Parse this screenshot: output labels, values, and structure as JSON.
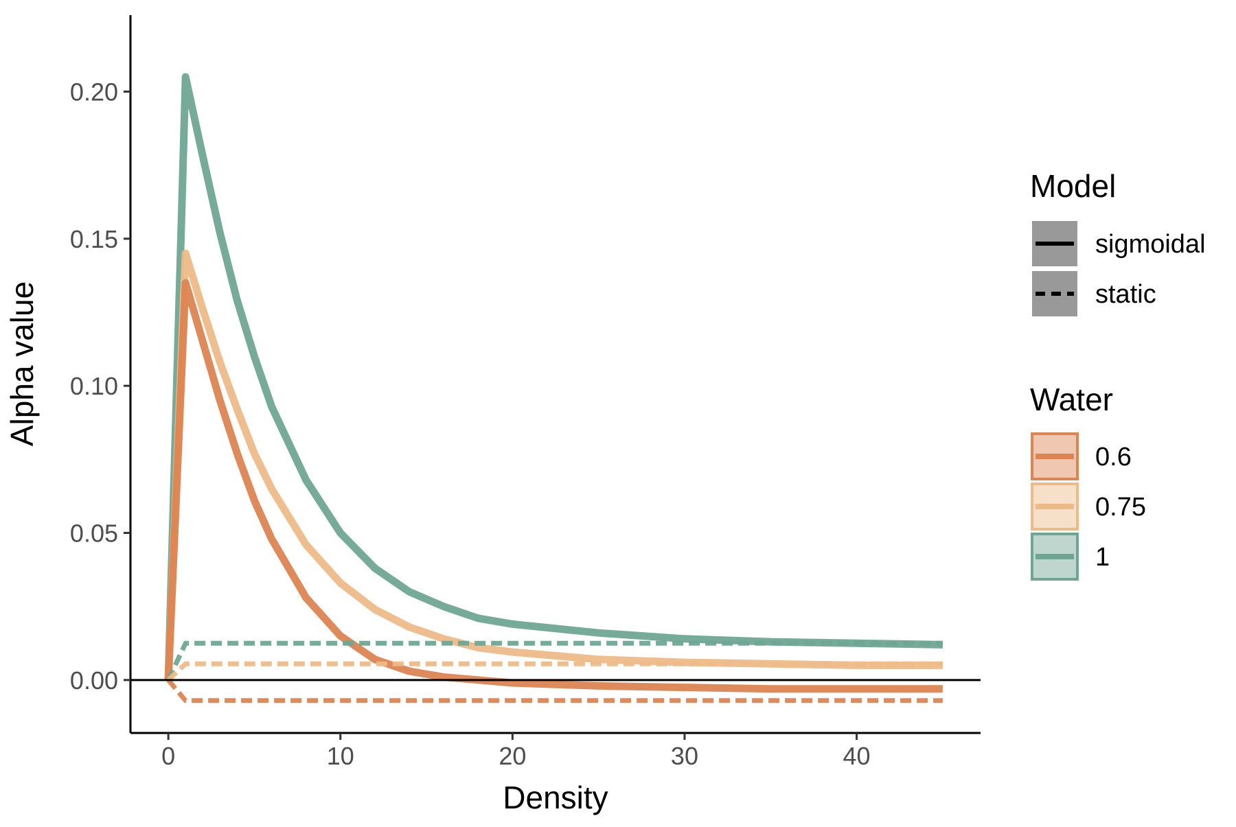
{
  "chart_data": {
    "type": "line",
    "xlabel": "Density",
    "ylabel": "Alpha value",
    "xlim": [
      -2.2,
      47.2
    ],
    "ylim": [
      -0.018,
      0.226
    ],
    "x_ticks": [
      0,
      10,
      20,
      30,
      40
    ],
    "x_tick_labels": [
      "0",
      "10",
      "20",
      "30",
      "40"
    ],
    "y_ticks": [
      0.0,
      0.05,
      0.1,
      0.15,
      0.2
    ],
    "y_tick_labels": [
      "0.00",
      "0.05",
      "0.10",
      "0.15",
      "0.20"
    ],
    "hline": 0,
    "grid": false,
    "legend_position": "right",
    "legends": {
      "model": {
        "title": "Model",
        "items": [
          {
            "label": "sigmoidal",
            "style": "solid"
          },
          {
            "label": "static",
            "style": "dashed"
          }
        ]
      },
      "water": {
        "title": "Water",
        "items": [
          {
            "label": "0.6",
            "color": "#dd8452"
          },
          {
            "label": "0.75",
            "color": "#eebb88"
          },
          {
            "label": "1",
            "color": "#6fa593"
          }
        ]
      }
    },
    "series": [
      {
        "water": "1",
        "model": "sigmoidal",
        "color": "#6fa593",
        "x": [
          0,
          1,
          2,
          3,
          4,
          5,
          6,
          8,
          10,
          12,
          14,
          16,
          18,
          20,
          25,
          30,
          35,
          40,
          45
        ],
        "y": [
          0.0,
          0.205,
          0.178,
          0.152,
          0.129,
          0.11,
          0.093,
          0.068,
          0.05,
          0.038,
          0.03,
          0.025,
          0.021,
          0.019,
          0.016,
          0.014,
          0.013,
          0.0125,
          0.012
        ]
      },
      {
        "water": "0.75",
        "model": "sigmoidal",
        "color": "#eebb88",
        "x": [
          0,
          1,
          2,
          3,
          4,
          5,
          6,
          8,
          10,
          12,
          14,
          16,
          18,
          20,
          25,
          30,
          35,
          40,
          45
        ],
        "y": [
          0.0,
          0.145,
          0.126,
          0.108,
          0.092,
          0.077,
          0.065,
          0.046,
          0.033,
          0.024,
          0.018,
          0.014,
          0.011,
          0.0095,
          0.007,
          0.006,
          0.0055,
          0.005,
          0.005
        ]
      },
      {
        "water": "0.6",
        "model": "sigmoidal",
        "color": "#dd8452",
        "x": [
          0,
          1,
          2,
          3,
          4,
          5,
          6,
          8,
          10,
          12,
          14,
          16,
          18,
          20,
          25,
          30,
          35,
          40,
          45
        ],
        "y": [
          0.0,
          0.135,
          0.115,
          0.095,
          0.077,
          0.061,
          0.048,
          0.028,
          0.015,
          0.007,
          0.003,
          0.001,
          0.0,
          -0.001,
          -0.002,
          -0.0025,
          -0.003,
          -0.003,
          -0.003
        ]
      },
      {
        "water": "1",
        "model": "static",
        "color": "#6fa593",
        "x": [
          0,
          1,
          45
        ],
        "y": [
          0.0,
          0.0125,
          0.0125
        ]
      },
      {
        "water": "0.75",
        "model": "static",
        "color": "#eebb88",
        "x": [
          0,
          1,
          45
        ],
        "y": [
          0.0,
          0.0055,
          0.0055
        ]
      },
      {
        "water": "0.6",
        "model": "static",
        "color": "#dd8452",
        "x": [
          0,
          1,
          45
        ],
        "y": [
          0.0,
          -0.007,
          -0.007
        ]
      }
    ]
  }
}
